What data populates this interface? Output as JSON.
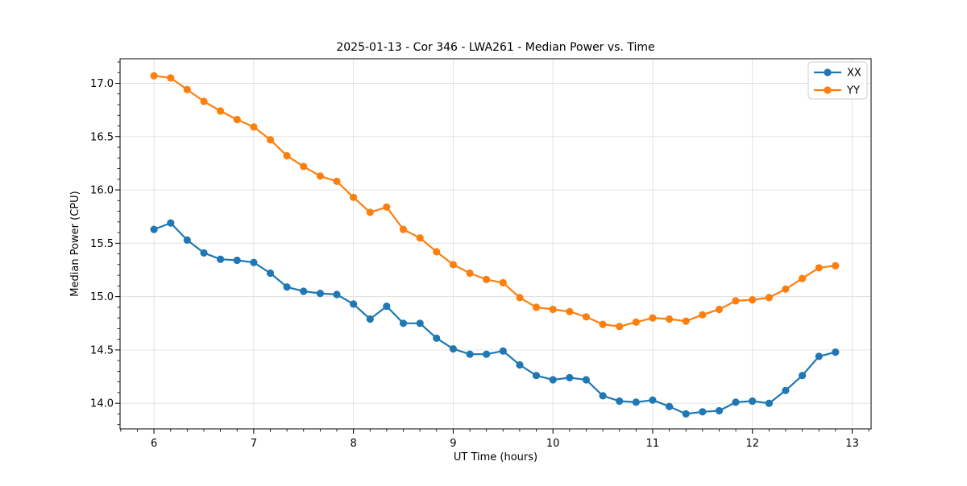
{
  "chart_data": {
    "type": "line",
    "title": "2025-01-13 - Cor 346 - LWA261 - Median Power vs. Time",
    "xlabel": "UT Time (hours)",
    "ylabel": "Median Power (CPU)",
    "xlim": [
      5.66,
      13.19
    ],
    "ylim": [
      13.76,
      17.23
    ],
    "x_ticks": [
      6,
      7,
      8,
      9,
      10,
      11,
      12,
      13
    ],
    "y_ticks": [
      14.0,
      14.5,
      15.0,
      15.5,
      16.0,
      16.5,
      17.0
    ],
    "minor_x_step": 0.1667,
    "minor_y_step": 0.1,
    "grid": true,
    "grid_color": "#e0e0e0",
    "legend_position": "upper right",
    "x": [
      6.0,
      6.167,
      6.333,
      6.5,
      6.667,
      6.833,
      7.0,
      7.167,
      7.333,
      7.5,
      7.667,
      7.833,
      8.0,
      8.167,
      8.333,
      8.5,
      8.667,
      8.833,
      9.0,
      9.167,
      9.333,
      9.5,
      9.667,
      9.833,
      10.0,
      10.167,
      10.333,
      10.5,
      10.667,
      10.833,
      11.0,
      11.167,
      11.333,
      11.5,
      11.667,
      11.833,
      12.0,
      12.167,
      12.333,
      12.5,
      12.667,
      12.833
    ],
    "series": [
      {
        "name": "XX",
        "color": "#1f77b4",
        "values": [
          15.63,
          15.69,
          15.53,
          15.41,
          15.35,
          15.34,
          15.32,
          15.22,
          15.09,
          15.05,
          15.03,
          15.02,
          14.93,
          14.79,
          14.91,
          14.75,
          14.75,
          14.61,
          14.51,
          14.46,
          14.46,
          14.49,
          14.36,
          14.26,
          14.22,
          14.24,
          14.22,
          14.07,
          14.02,
          14.01,
          14.03,
          13.97,
          13.9,
          13.92,
          13.93,
          14.01,
          14.02,
          14.0,
          14.12,
          14.26,
          14.44,
          14.48
        ]
      },
      {
        "name": "YY",
        "color": "#ff7f0e",
        "values": [
          17.07,
          17.05,
          16.94,
          16.83,
          16.74,
          16.66,
          16.59,
          16.47,
          16.32,
          16.22,
          16.13,
          16.08,
          15.93,
          15.79,
          15.84,
          15.63,
          15.55,
          15.42,
          15.3,
          15.22,
          15.16,
          15.13,
          14.99,
          14.9,
          14.88,
          14.86,
          14.81,
          14.74,
          14.72,
          14.76,
          14.8,
          14.79,
          14.77,
          14.83,
          14.88,
          14.96,
          14.97,
          14.99,
          15.07,
          15.17,
          15.27,
          15.29
        ]
      }
    ]
  }
}
